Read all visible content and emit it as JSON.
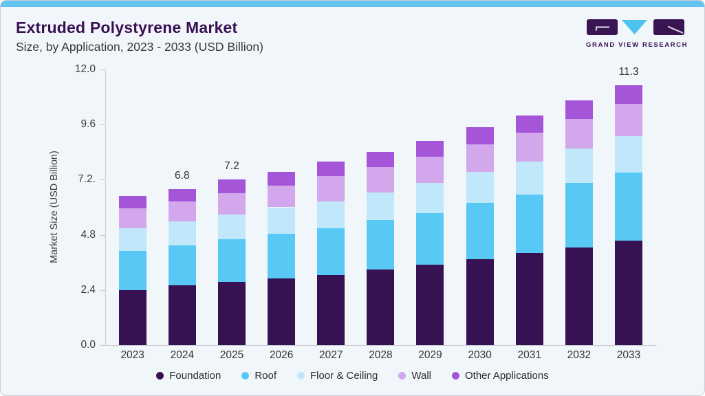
{
  "header": {
    "title": "Extruded Polystyrene Market",
    "subtitle": "Size, by Application, 2023 - 2033 (USD Billion)"
  },
  "logo": {
    "text": "GRAND VIEW RESEARCH",
    "block_color": "#3a1353",
    "triangle_color": "#4cc2ef"
  },
  "colors": {
    "top_strip": "#64c4f0",
    "card_background": "#f1f6fa",
    "axis": "#c6ccd2",
    "title_text": "#3a1053"
  },
  "chart_data": {
    "type": "bar",
    "stacked": true,
    "title": "Extruded Polystyrene Market Size, by Application, 2023 - 2033 (USD Billion)",
    "xlabel": "",
    "ylabel": "Market Size (USD Billion)",
    "ylim": [
      0,
      12
    ],
    "grid": false,
    "legend_position": "bottom",
    "categories": [
      "2023",
      "2024",
      "2025",
      "2026",
      "2027",
      "2028",
      "2029",
      "2030",
      "2031",
      "2032",
      "2033"
    ],
    "yticks": [
      {
        "value": 0,
        "label": "0.0"
      },
      {
        "value": 2.4,
        "label": "2.4"
      },
      {
        "value": 4.8,
        "label": "4.8"
      },
      {
        "value": 7.2,
        "label": "7.2."
      },
      {
        "value": 9.6,
        "label": "9.6"
      },
      {
        "value": 12,
        "label": "12.0"
      }
    ],
    "series": [
      {
        "name": "Foundation",
        "color": "#361253",
        "values": [
          2.4,
          2.6,
          2.75,
          2.9,
          3.05,
          3.3,
          3.5,
          3.75,
          4.0,
          4.25,
          4.55
        ]
      },
      {
        "name": "Roof",
        "color": "#58c8f4",
        "values": [
          1.7,
          1.75,
          1.85,
          1.95,
          2.05,
          2.15,
          2.25,
          2.45,
          2.55,
          2.8,
          2.95
        ]
      },
      {
        "name": "Floor & Ceiling",
        "color": "#c0e8fa",
        "values": [
          1.0,
          1.05,
          1.1,
          1.15,
          1.15,
          1.2,
          1.3,
          1.35,
          1.45,
          1.5,
          1.6
        ]
      },
      {
        "name": "Wall",
        "color": "#d2a7eb",
        "values": [
          0.85,
          0.85,
          0.9,
          0.95,
          1.1,
          1.1,
          1.15,
          1.2,
          1.25,
          1.3,
          1.4
        ]
      },
      {
        "name": "Other Applications",
        "color": "#a455d8",
        "values": [
          0.55,
          0.55,
          0.6,
          0.6,
          0.65,
          0.65,
          0.7,
          0.75,
          0.75,
          0.8,
          0.8
        ]
      }
    ],
    "totals": [
      6.5,
      6.8,
      7.2,
      7.55,
      8.0,
      8.4,
      8.9,
      9.5,
      10.0,
      10.65,
      11.3
    ],
    "total_labels": [
      {
        "category": "2024",
        "label": "6.8"
      },
      {
        "category": "2025",
        "label": "7.2"
      },
      {
        "category": "2033",
        "label": "11.3"
      }
    ]
  }
}
